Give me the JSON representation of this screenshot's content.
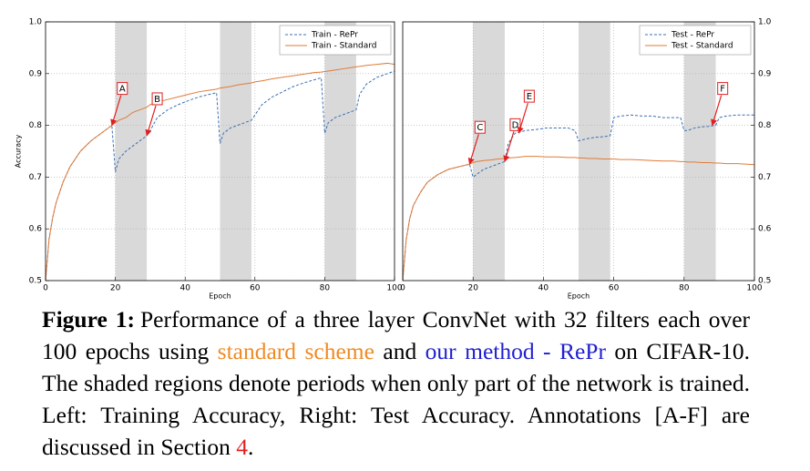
{
  "chart_data": [
    {
      "type": "line",
      "xlabel": "Epoch",
      "ylabel": "Accuracy",
      "y_axis_side": "left",
      "xlim": [
        0,
        100
      ],
      "ylim": [
        0.5,
        1.0
      ],
      "xticks": [
        0,
        20,
        40,
        60,
        80,
        100
      ],
      "yticks": [
        0.5,
        0.6,
        0.7,
        0.8,
        0.9,
        {
          "value": 1.0,
          "label": "1.0"
        }
      ],
      "grid": true,
      "legend": "upper right",
      "shaded": [
        [
          20,
          29
        ],
        [
          50,
          59
        ],
        [
          80,
          89
        ]
      ],
      "shade_color": "#d9d9d9",
      "x": [
        0,
        1,
        2,
        3,
        5,
        7,
        10,
        13,
        16,
        19,
        20,
        21,
        23,
        25,
        27,
        29,
        30,
        32,
        35,
        38,
        41,
        44,
        47,
        49,
        50,
        51,
        53,
        55,
        57,
        59,
        60,
        62,
        65,
        68,
        71,
        74,
        77,
        79,
        80,
        81,
        83,
        85,
        87,
        89,
        90,
        92,
        95,
        98,
        100
      ],
      "series": [
        {
          "name": "Train - RePr",
          "color": "#3a6fb5",
          "dashed": true,
          "values": [
            0.5,
            0.58,
            0.62,
            0.65,
            0.69,
            0.72,
            0.75,
            0.77,
            0.785,
            0.8,
            0.71,
            0.735,
            0.75,
            0.76,
            0.77,
            0.78,
            0.79,
            0.815,
            0.83,
            0.84,
            0.848,
            0.855,
            0.86,
            0.863,
            0.765,
            0.785,
            0.795,
            0.8,
            0.805,
            0.81,
            0.82,
            0.84,
            0.855,
            0.865,
            0.875,
            0.882,
            0.888,
            0.892,
            0.785,
            0.805,
            0.815,
            0.82,
            0.825,
            0.83,
            0.86,
            0.88,
            0.893,
            0.9,
            0.905
          ]
        },
        {
          "name": "Train - Standard",
          "color": "#e07b39",
          "dashed": false,
          "values": [
            0.5,
            0.58,
            0.62,
            0.65,
            0.69,
            0.72,
            0.75,
            0.77,
            0.785,
            0.8,
            0.805,
            0.81,
            0.815,
            0.825,
            0.83,
            0.835,
            0.84,
            0.845,
            0.85,
            0.855,
            0.86,
            0.865,
            0.868,
            0.87,
            0.872,
            0.873,
            0.875,
            0.878,
            0.88,
            0.882,
            0.884,
            0.886,
            0.89,
            0.893,
            0.896,
            0.899,
            0.902,
            0.903,
            0.904,
            0.905,
            0.907,
            0.909,
            0.911,
            0.913,
            0.914,
            0.916,
            0.918,
            0.92,
            0.918
          ]
        }
      ],
      "annotations": [
        {
          "label": "A",
          "x": 19,
          "y": 0.8
        },
        {
          "label": "B",
          "x": 29,
          "y": 0.78
        }
      ],
      "annotation_color": "#e02020"
    },
    {
      "type": "line",
      "xlabel": "Epoch",
      "y_axis_side": "right",
      "xlim": [
        0,
        100
      ],
      "ylim": [
        0.5,
        1.0
      ],
      "xticks": [
        0,
        20,
        40,
        60,
        80,
        100
      ],
      "yticks": [
        0.5,
        0.6,
        0.7,
        0.8,
        0.9,
        {
          "value": 1.0,
          "label": "1.0"
        }
      ],
      "grid": true,
      "legend": "upper right",
      "shaded": [
        [
          20,
          29
        ],
        [
          50,
          59
        ],
        [
          80,
          89
        ]
      ],
      "shade_color": "#d9d9d9",
      "x": [
        0,
        1,
        2,
        3,
        5,
        7,
        10,
        13,
        16,
        19,
        20,
        21,
        23,
        25,
        27,
        29,
        30,
        32,
        35,
        38,
        41,
        44,
        47,
        49,
        50,
        51,
        53,
        55,
        57,
        59,
        60,
        62,
        65,
        68,
        71,
        74,
        77,
        79,
        80,
        81,
        83,
        85,
        87,
        89,
        90,
        92,
        95,
        98,
        100
      ],
      "series": [
        {
          "name": "Test - RePr",
          "color": "#3a6fb5",
          "dashed": true,
          "values": [
            0.5,
            0.58,
            0.62,
            0.645,
            0.67,
            0.69,
            0.705,
            0.715,
            0.72,
            0.725,
            0.7,
            0.705,
            0.715,
            0.72,
            0.725,
            0.73,
            0.765,
            0.785,
            0.79,
            0.792,
            0.795,
            0.795,
            0.795,
            0.79,
            0.77,
            0.772,
            0.775,
            0.777,
            0.778,
            0.78,
            0.815,
            0.818,
            0.82,
            0.818,
            0.818,
            0.815,
            0.815,
            0.815,
            0.79,
            0.79,
            0.795,
            0.797,
            0.798,
            0.8,
            0.815,
            0.818,
            0.82,
            0.82,
            0.82
          ]
        },
        {
          "name": "Test - Standard",
          "color": "#e07b39",
          "dashed": false,
          "values": [
            0.5,
            0.58,
            0.62,
            0.645,
            0.67,
            0.69,
            0.705,
            0.715,
            0.72,
            0.725,
            0.728,
            0.73,
            0.732,
            0.733,
            0.735,
            0.736,
            0.737,
            0.738,
            0.74,
            0.74,
            0.739,
            0.739,
            0.738,
            0.738,
            0.737,
            0.737,
            0.736,
            0.736,
            0.735,
            0.735,
            0.735,
            0.734,
            0.734,
            0.733,
            0.732,
            0.731,
            0.731,
            0.73,
            0.73,
            0.729,
            0.729,
            0.728,
            0.728,
            0.727,
            0.727,
            0.726,
            0.726,
            0.725,
            0.724
          ]
        }
      ],
      "annotations": [
        {
          "label": "C",
          "x": 19,
          "y": 0.725
        },
        {
          "label": "D",
          "x": 29,
          "y": 0.73
        },
        {
          "label": "E",
          "x": 33,
          "y": 0.785
        },
        {
          "label": "F",
          "x": 88,
          "y": 0.8
        }
      ],
      "annotation_color": "#e02020"
    }
  ],
  "caption": {
    "label": "Figure 1:",
    "parts": [
      {
        "text": "Performance of a three layer ConvNet with 32 filters each over 100 epochs using "
      },
      {
        "text": "standard scheme",
        "color": "#f08a24"
      },
      {
        "text": " and "
      },
      {
        "text": "our method - RePr",
        "color": "#1f1fd0"
      },
      {
        "text": " on CIFAR-10. The shaded regions denote periods when only part of the network is trained. Left: Training Accuracy, Right: Test Accuracy. Annotations [A-F] are discussed in Section "
      },
      {
        "text": "4",
        "color": "#e02020"
      },
      {
        "text": "."
      }
    ]
  }
}
